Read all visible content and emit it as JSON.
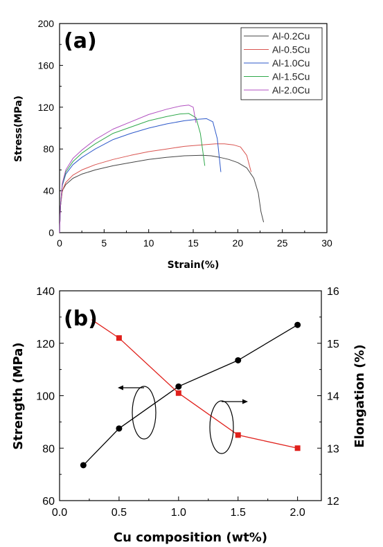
{
  "chart_data": [
    {
      "type": "line",
      "panel_label": "(a)",
      "xlabel": "Strain(%)",
      "ylabel": "Stress(MPa)",
      "xlim": [
        0,
        30
      ],
      "ylim": [
        0,
        200
      ],
      "xticks": [
        "0",
        "5",
        "10",
        "15",
        "20",
        "25",
        "30"
      ],
      "yticks": [
        "0",
        "40",
        "80",
        "120",
        "160",
        "200"
      ],
      "legend_position": "top-right",
      "series": [
        {
          "name": "Al-0.2Cu",
          "color": "#444444",
          "x": [
            0,
            0.1,
            0.3,
            0.7,
            1.5,
            2.5,
            4,
            6,
            8,
            10,
            12,
            14,
            16,
            17,
            18,
            19,
            20,
            21,
            21.8,
            22.3,
            22.6,
            22.9
          ],
          "y": [
            0,
            25,
            40,
            46,
            52,
            56,
            60,
            64,
            67,
            70,
            72,
            73.5,
            74,
            73.5,
            72,
            70,
            67,
            62,
            52,
            38,
            20,
            10
          ]
        },
        {
          "name": "Al-0.5Cu",
          "color": "#d9534f",
          "x": [
            0,
            0.1,
            0.3,
            0.7,
            1.5,
            2.5,
            4,
            6,
            8,
            10,
            12,
            14,
            16,
            17.5,
            18.5,
            19.5,
            20.3,
            21,
            21.5
          ],
          "y": [
            0,
            25,
            40,
            48,
            55,
            60,
            65,
            70,
            74,
            77.5,
            80,
            82.5,
            84,
            85,
            85,
            84,
            82,
            74,
            58
          ]
        },
        {
          "name": "Al-1.0Cu",
          "color": "#2b57c9",
          "x": [
            0,
            0.1,
            0.3,
            0.7,
            1.5,
            2.5,
            4,
            6,
            8,
            10,
            12,
            14,
            15.5,
            16.5,
            17.2,
            17.7,
            18.1
          ],
          "y": [
            0,
            25,
            45,
            56,
            65,
            72,
            80,
            89,
            95,
            100,
            104,
            107,
            108.5,
            109,
            106,
            90,
            58
          ]
        },
        {
          "name": "Al-1.5Cu",
          "color": "#2ea84a",
          "x": [
            0,
            0.1,
            0.3,
            0.7,
            1.5,
            2.5,
            4,
            6,
            8,
            10,
            12,
            13.5,
            14.5,
            15.3,
            15.8,
            16.3
          ],
          "y": [
            0,
            25,
            46,
            58,
            68,
            76,
            85,
            95,
            101,
            107,
            111,
            113.5,
            114,
            110,
            95,
            64
          ]
        },
        {
          "name": "Al-2.0Cu",
          "color": "#b14fc0",
          "x": [
            0,
            0.1,
            0.3,
            0.7,
            1.5,
            2.5,
            4,
            6,
            8,
            10,
            12,
            13.5,
            14.5,
            15,
            15.3
          ],
          "y": [
            0,
            25,
            47,
            60,
            71,
            79,
            89,
            99,
            106,
            113,
            118,
            121,
            122,
            120,
            105
          ]
        }
      ]
    },
    {
      "type": "line",
      "panel_label": "(b)",
      "xlabel": "Cu composition (wt%)",
      "ylabel": "Strength (MPa)",
      "y2label": "Elongation (%)",
      "xlim": [
        0,
        2.2
      ],
      "ylim": [
        60,
        140
      ],
      "y2lim": [
        12,
        16
      ],
      "xticks": [
        "0.0",
        "0.5",
        "1.0",
        "1.5",
        "2.0"
      ],
      "yticks": [
        "60",
        "80",
        "100",
        "120",
        "140"
      ],
      "y2ticks": [
        "12",
        "13",
        "14",
        "15",
        "16"
      ],
      "series": [
        {
          "color": "#000000",
          "axis": "left",
          "marker": "circle",
          "x": [
            0.2,
            0.5,
            1.0,
            1.5,
            2.0
          ],
          "y": [
            73.5,
            87.5,
            103.5,
            113.5,
            127
          ]
        },
        {
          "color": "#e0201b",
          "axis": "right",
          "marker": "square",
          "x": [
            0.2,
            0.5,
            1.0,
            1.5,
            2.0
          ],
          "y": [
            15.5,
            15.1,
            14.05,
            13.25,
            13.0
          ]
        }
      ]
    }
  ]
}
